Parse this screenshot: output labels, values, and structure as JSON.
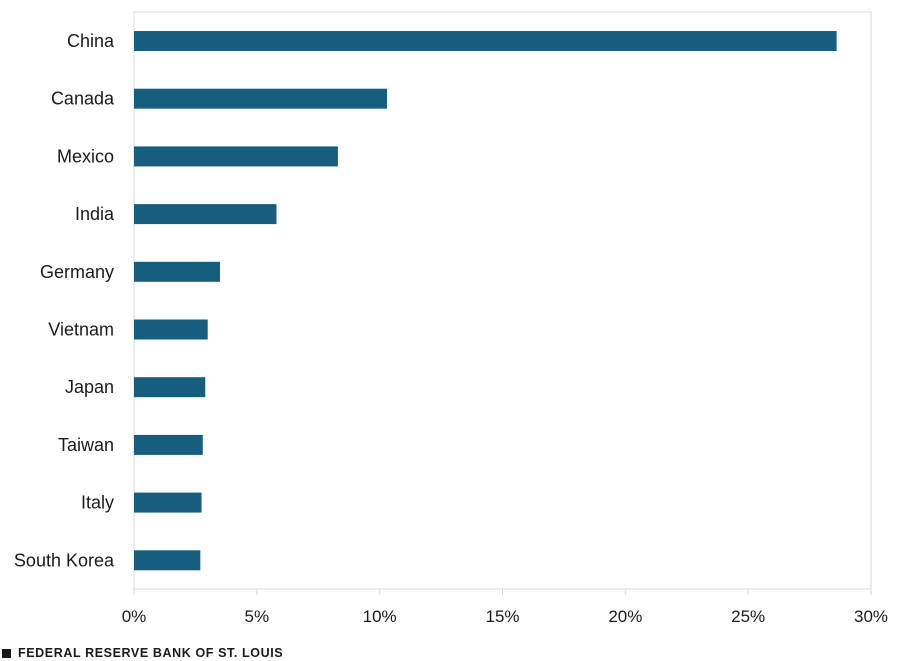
{
  "chart_data": {
    "type": "bar",
    "orientation": "horizontal",
    "categories": [
      "China",
      "Canada",
      "Mexico",
      "India",
      "Germany",
      "Vietnam",
      "Japan",
      "Taiwan",
      "Italy",
      "South Korea"
    ],
    "values": [
      28.6,
      10.3,
      8.3,
      5.8,
      3.5,
      3.0,
      2.9,
      2.8,
      2.75,
      2.7
    ],
    "xlim": [
      0,
      30
    ],
    "xticks": [
      0,
      5,
      10,
      15,
      20,
      25,
      30
    ],
    "tick_suffix": "%",
    "bar_color": "#175d7e",
    "grid": false,
    "legend": "none"
  },
  "footer": {
    "source": "FEDERAL RESERVE BANK OF ST. LOUIS"
  }
}
